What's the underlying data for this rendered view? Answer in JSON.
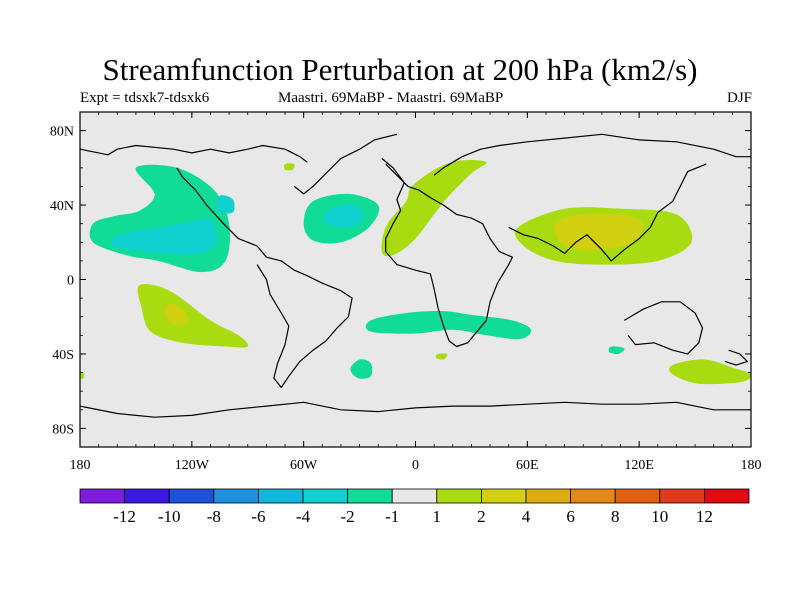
{
  "title": "Streamfunction Perturbation at 200 hPa (km2/s)",
  "subtitle_left": "Expt = tdsxk7-tdsxk6",
  "subtitle_center": "Maastri.  69MaBP - Maastri.  69MaBP",
  "subtitle_right": "DJF",
  "map": {
    "lon_range": [
      -180,
      180
    ],
    "lat_range": [
      -90,
      90
    ],
    "background_color": "#e8e8e8",
    "lon_ticks": [
      {
        "value": -180,
        "label": "180"
      },
      {
        "value": -120,
        "label": "120W"
      },
      {
        "value": -60,
        "label": "60W"
      },
      {
        "value": 0,
        "label": "0"
      },
      {
        "value": 60,
        "label": "60E"
      },
      {
        "value": 120,
        "label": "120E"
      },
      {
        "value": 180,
        "label": "180"
      }
    ],
    "lat_ticks": [
      {
        "value": 80,
        "label": "80N"
      },
      {
        "value": 40,
        "label": "40N"
      },
      {
        "value": 0,
        "label": "0"
      },
      {
        "value": -40,
        "label": "40S"
      },
      {
        "value": -80,
        "label": "80S"
      }
    ]
  },
  "colorbar": {
    "colors": [
      "#7d1cdc",
      "#3c18e0",
      "#1e50d8",
      "#1e90dc",
      "#10b8dc",
      "#10d0d0",
      "#10dc98",
      "#e8e8e8",
      "#a8dc10",
      "#d0d010",
      "#dcac10",
      "#e08818",
      "#e06010",
      "#e03c1c",
      "#e00a10"
    ],
    "labels": [
      "-12",
      "-10",
      "-8",
      "-6",
      "-4",
      "-2",
      "-1",
      "1",
      "2",
      "4",
      "6",
      "8",
      "10",
      "12"
    ]
  },
  "anomalies": [
    {
      "color": "#10dc98",
      "points": [
        [
          -150,
          60
        ],
        [
          -128,
          60
        ],
        [
          -108,
          48
        ],
        [
          -100,
          30
        ],
        [
          -102,
          10
        ],
        [
          -115,
          4
        ],
        [
          -138,
          10
        ],
        [
          -155,
          13
        ],
        [
          -173,
          20
        ],
        [
          -173,
          30
        ],
        [
          -162,
          34
        ],
        [
          -148,
          37
        ],
        [
          -140,
          46
        ]
      ]
    },
    {
      "color": "#10d0d0",
      "points": [
        [
          -155,
          25
        ],
        [
          -125,
          30
        ],
        [
          -110,
          32
        ],
        [
          -107,
          20
        ],
        [
          -115,
          14
        ],
        [
          -135,
          14
        ],
        [
          -160,
          17
        ],
        [
          -162,
          22
        ]
      ]
    },
    {
      "color": "#10d0d0",
      "points": [
        [
          -105,
          45
        ],
        [
          -98,
          43
        ],
        [
          -98,
          36
        ],
        [
          -106,
          37
        ]
      ]
    },
    {
      "color": "#10dc98",
      "points": [
        [
          -55,
          42
        ],
        [
          -36,
          46
        ],
        [
          -20,
          40
        ],
        [
          -25,
          28
        ],
        [
          -40,
          20
        ],
        [
          -55,
          21
        ],
        [
          -60,
          30
        ]
      ]
    },
    {
      "color": "#10d0d0",
      "points": [
        [
          -45,
          38
        ],
        [
          -33,
          40
        ],
        [
          -28,
          34
        ],
        [
          -35,
          28
        ],
        [
          -45,
          29
        ],
        [
          -49,
          33
        ]
      ]
    },
    {
      "color": "#a8dc10",
      "points": [
        [
          -2,
          50
        ],
        [
          12,
          60
        ],
        [
          25,
          64
        ],
        [
          38,
          63
        ],
        [
          30,
          57
        ],
        [
          18,
          45
        ],
        [
          10,
          35
        ],
        [
          0,
          22
        ],
        [
          -10,
          14
        ],
        [
          -17,
          13
        ],
        [
          -18,
          20
        ],
        [
          -15,
          30
        ],
        [
          -5,
          42
        ]
      ]
    },
    {
      "color": "#a8dc10",
      "points": [
        [
          55,
          28
        ],
        [
          80,
          38
        ],
        [
          110,
          38
        ],
        [
          140,
          35
        ],
        [
          148,
          20
        ],
        [
          130,
          10
        ],
        [
          100,
          8
        ],
        [
          75,
          10
        ],
        [
          58,
          18
        ]
      ]
    },
    {
      "color": "#d0d010",
      "points": [
        [
          75,
          30
        ],
        [
          90,
          35
        ],
        [
          110,
          35
        ],
        [
          122,
          30
        ],
        [
          117,
          20
        ],
        [
          98,
          16
        ],
        [
          80,
          18
        ]
      ]
    },
    {
      "color": "#a8dc10",
      "points": [
        [
          -148,
          -3
        ],
        [
          -132,
          -6
        ],
        [
          -110,
          -22
        ],
        [
          -95,
          -30
        ],
        [
          -90,
          -36
        ],
        [
          -102,
          -36
        ],
        [
          -125,
          -34
        ],
        [
          -142,
          -28
        ],
        [
          -147,
          -15
        ]
      ]
    },
    {
      "color": "#d0d010",
      "points": [
        [
          -132,
          -13
        ],
        [
          -124,
          -17
        ],
        [
          -122,
          -23
        ],
        [
          -130,
          -24
        ],
        [
          -135,
          -18
        ]
      ]
    },
    {
      "color": "#10dc98",
      "points": [
        [
          -24,
          -22
        ],
        [
          -5,
          -18
        ],
        [
          15,
          -17
        ],
        [
          30,
          -19
        ],
        [
          52,
          -22
        ],
        [
          62,
          -27
        ],
        [
          56,
          -32
        ],
        [
          38,
          -30
        ],
        [
          20,
          -27
        ],
        [
          0,
          -29
        ],
        [
          -24,
          -28
        ]
      ]
    },
    {
      "color": "#10dc98",
      "points": [
        [
          -30,
          -43
        ],
        [
          -24,
          -45
        ],
        [
          -24,
          -52
        ],
        [
          -31,
          -53
        ],
        [
          -35,
          -48
        ]
      ]
    },
    {
      "color": "#10dc98",
      "points": [
        [
          105,
          -36
        ],
        [
          112,
          -37
        ],
        [
          109,
          -40
        ],
        [
          104,
          -39
        ]
      ]
    },
    {
      "color": "#a8dc10",
      "points": [
        [
          138,
          -46
        ],
        [
          155,
          -43
        ],
        [
          172,
          -48
        ],
        [
          180,
          -51
        ],
        [
          175,
          -55
        ],
        [
          152,
          -56
        ],
        [
          138,
          -51
        ]
      ]
    },
    {
      "color": "#a8dc10",
      "points": [
        [
          -180,
          -50
        ],
        [
          -178,
          -50
        ],
        [
          -178,
          -53
        ],
        [
          -180,
          -53
        ]
      ]
    },
    {
      "color": "#a8dc10",
      "points": [
        [
          -70,
          62
        ],
        [
          -65,
          62
        ],
        [
          -66,
          59
        ],
        [
          -70,
          59
        ]
      ]
    },
    {
      "color": "#a8dc10",
      "points": [
        [
          12,
          -40
        ],
        [
          17,
          -40
        ],
        [
          15,
          -43
        ],
        [
          11,
          -42
        ]
      ]
    }
  ],
  "coastlines": [
    [
      [
        -180,
        70
      ],
      [
        -165,
        67
      ],
      [
        -160,
        70
      ],
      [
        -150,
        72
      ],
      [
        -130,
        70
      ],
      [
        -120,
        68
      ],
      [
        -110,
        70
      ],
      [
        -100,
        68
      ],
      [
        -90,
        70
      ],
      [
        -82,
        72
      ],
      [
        -70,
        70
      ],
      [
        -62,
        66
      ],
      [
        -58,
        63
      ]
    ],
    [
      [
        -128,
        60
      ],
      [
        -125,
        55
      ],
      [
        -118,
        48
      ],
      [
        -112,
        40
      ],
      [
        -103,
        30
      ],
      [
        -95,
        22
      ],
      [
        -85,
        18
      ],
      [
        -80,
        12
      ],
      [
        -72,
        10
      ],
      [
        -65,
        5
      ],
      [
        -58,
        2
      ],
      [
        -50,
        -2
      ],
      [
        -40,
        -6
      ],
      [
        -34,
        -10
      ],
      [
        -36,
        -20
      ],
      [
        -42,
        -26
      ],
      [
        -48,
        -33
      ],
      [
        -55,
        -38
      ],
      [
        -62,
        -44
      ],
      [
        -68,
        -52
      ],
      [
        -72,
        -58
      ],
      [
        -76,
        -53
      ],
      [
        -74,
        -45
      ],
      [
        -70,
        -35
      ],
      [
        -68,
        -25
      ],
      [
        -72,
        -18
      ],
      [
        -78,
        -8
      ],
      [
        -80,
        0
      ],
      [
        -85,
        8
      ]
    ],
    [
      [
        -65,
        50
      ],
      [
        -60,
        46
      ],
      [
        -55,
        50
      ],
      [
        -50,
        55
      ],
      [
        -40,
        65
      ],
      [
        -30,
        70
      ],
      [
        -22,
        75
      ],
      [
        -10,
        78
      ]
    ],
    [
      [
        -18,
        65
      ],
      [
        -12,
        60
      ],
      [
        -6,
        52
      ],
      [
        -10,
        43
      ],
      [
        -8,
        37
      ],
      [
        -12,
        30
      ],
      [
        -16,
        22
      ],
      [
        -16,
        15
      ],
      [
        -10,
        8
      ],
      [
        0,
        5
      ],
      [
        8,
        3
      ],
      [
        10,
        -5
      ],
      [
        12,
        -15
      ],
      [
        15,
        -25
      ],
      [
        18,
        -33
      ],
      [
        22,
        -36
      ],
      [
        28,
        -34
      ],
      [
        33,
        -28
      ],
      [
        38,
        -22
      ],
      [
        40,
        -12
      ],
      [
        44,
        -2
      ],
      [
        50,
        8
      ],
      [
        52,
        12
      ],
      [
        45,
        15
      ],
      [
        40,
        22
      ],
      [
        36,
        30
      ],
      [
        30,
        33
      ],
      [
        22,
        35
      ],
      [
        15,
        40
      ],
      [
        8,
        44
      ],
      [
        2,
        48
      ],
      [
        -4,
        50
      ],
      [
        -10,
        56
      ],
      [
        -16,
        62
      ]
    ],
    [
      [
        10,
        56
      ],
      [
        15,
        60
      ],
      [
        25,
        66
      ],
      [
        35,
        70
      ],
      [
        45,
        72
      ],
      [
        60,
        74
      ],
      [
        80,
        76
      ],
      [
        100,
        78
      ],
      [
        120,
        75
      ],
      [
        140,
        74
      ],
      [
        160,
        70
      ],
      [
        172,
        66
      ],
      [
        180,
        66
      ]
    ],
    [
      [
        50,
        28
      ],
      [
        58,
        24
      ],
      [
        66,
        22
      ],
      [
        74,
        18
      ],
      [
        80,
        14
      ],
      [
        86,
        20
      ],
      [
        92,
        24
      ],
      [
        100,
        16
      ],
      [
        105,
        10
      ],
      [
        112,
        16
      ],
      [
        120,
        22
      ],
      [
        126,
        28
      ],
      [
        130,
        36
      ],
      [
        138,
        42
      ],
      [
        142,
        50
      ],
      [
        146,
        58
      ],
      [
        156,
        62
      ]
    ],
    [
      [
        112,
        -22
      ],
      [
        122,
        -16
      ],
      [
        132,
        -12
      ],
      [
        142,
        -12
      ],
      [
        150,
        -18
      ],
      [
        154,
        -26
      ],
      [
        152,
        -34
      ],
      [
        146,
        -40
      ],
      [
        138,
        -38
      ],
      [
        128,
        -34
      ],
      [
        118,
        -35
      ],
      [
        114,
        -30
      ]
    ],
    [
      [
        -180,
        -68
      ],
      [
        -160,
        -72
      ],
      [
        -140,
        -74
      ],
      [
        -120,
        -73
      ],
      [
        -100,
        -70
      ],
      [
        -80,
        -68
      ],
      [
        -60,
        -66
      ],
      [
        -40,
        -70
      ],
      [
        -20,
        -71
      ],
      [
        0,
        -69
      ],
      [
        20,
        -68
      ],
      [
        40,
        -68
      ],
      [
        60,
        -67
      ],
      [
        80,
        -66
      ],
      [
        100,
        -67
      ],
      [
        120,
        -67
      ],
      [
        140,
        -66
      ],
      [
        160,
        -70
      ],
      [
        180,
        -70
      ]
    ],
    [
      [
        168,
        -38
      ],
      [
        174,
        -40
      ],
      [
        178,
        -44
      ],
      [
        172,
        -46
      ],
      [
        166,
        -44
      ]
    ]
  ]
}
